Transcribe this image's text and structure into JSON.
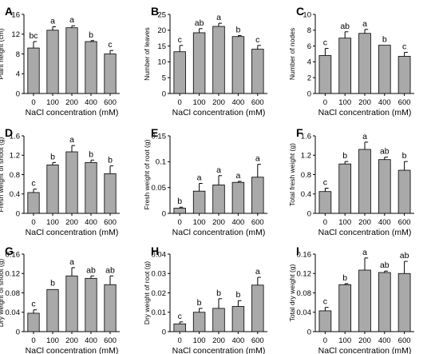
{
  "figure": {
    "panels": [
      {
        "letter": "A",
        "ylabel": "Plant height (cm)",
        "xlabel": "NaCl concentration (mM)"
      },
      {
        "letter": "B",
        "ylabel": "Number of leaves",
        "xlabel": "NaCl concentration (mM)"
      },
      {
        "letter": "C",
        "ylabel": "Number of nodes",
        "xlabel": "NaCl concentration (mM)"
      },
      {
        "letter": "D",
        "ylabel": "Fresh weight of shoot (g)",
        "xlabel": "NaCl concentration (mM)"
      },
      {
        "letter": "E",
        "ylabel": "Fresh weight of root (g)",
        "xlabel": "NaCl concentration (mM)"
      },
      {
        "letter": "F",
        "ylabel": "Total fresh weight (g)",
        "xlabel": "NaCl concentration (mM)"
      },
      {
        "letter": "G",
        "ylabel": "Dry weight of shoot (g)",
        "xlabel": "NaCl concentration (mM)"
      },
      {
        "letter": "H",
        "ylabel": "Dry weight of root (g)",
        "xlabel": "NaCl concentration (mM)"
      },
      {
        "letter": "I",
        "ylabel": "Total dry weight (g)",
        "xlabel": "NaCl concentration (mM)"
      }
    ]
  },
  "chart_data": [
    {
      "type": "bar",
      "panel": "A",
      "categories": [
        "0",
        "100",
        "200",
        "400",
        "600"
      ],
      "values": [
        9.2,
        12.8,
        13.3,
        10.5,
        8.0
      ],
      "errors": [
        1.3,
        0.7,
        0.4,
        0.2,
        0.7
      ],
      "significance": [
        "bc",
        "a",
        "a",
        "b",
        "c"
      ],
      "xlabel": "NaCl concentration (mM)",
      "ylabel": "Plant height (cm)",
      "ylim": [
        0,
        16
      ],
      "yticks": [
        "0",
        "4",
        "8",
        "12",
        "16"
      ],
      "bar_color": "#a9a9a9",
      "grid": false
    },
    {
      "type": "bar",
      "panel": "B",
      "categories": [
        "0",
        "100",
        "200",
        "400",
        "600"
      ],
      "values": [
        13.2,
        19.2,
        21.2,
        18.0,
        14.0
      ],
      "errors": [
        2.0,
        1.3,
        1.0,
        0.3,
        1.2
      ],
      "significance": [
        "c",
        "ab",
        "a",
        "b",
        "c"
      ],
      "xlabel": "NaCl concentration (mM)",
      "ylabel": "Number of leaves",
      "ylim": [
        0,
        25
      ],
      "yticks": [
        "0",
        "5",
        "10",
        "15",
        "20",
        "25"
      ],
      "bar_color": "#a9a9a9",
      "grid": false
    },
    {
      "type": "bar",
      "panel": "C",
      "categories": [
        "0",
        "100",
        "200",
        "400",
        "600"
      ],
      "values": [
        4.8,
        7.0,
        7.6,
        6.1,
        4.7
      ],
      "errors": [
        0.9,
        0.8,
        0.5,
        0.0,
        0.5
      ],
      "significance": [
        "c",
        "ab",
        "a",
        "b",
        "c"
      ],
      "xlabel": "NaCl concentration (mM)",
      "ylabel": "Number of nodes",
      "ylim": [
        0,
        10
      ],
      "yticks": [
        "0",
        "2",
        "4",
        "6",
        "8",
        "10"
      ],
      "bar_color": "#a9a9a9",
      "grid": false
    },
    {
      "type": "bar",
      "panel": "D",
      "categories": [
        "0",
        "100",
        "200",
        "400",
        "600"
      ],
      "values": [
        0.43,
        1.0,
        1.27,
        1.05,
        0.82
      ],
      "errors": [
        0.07,
        0.05,
        0.13,
        0.05,
        0.16
      ],
      "significance": [
        "c",
        "b",
        "a",
        "b",
        "b"
      ],
      "xlabel": "NaCl concentration (mM)",
      "ylabel": "Fresh weight of shoot (g)",
      "ylim": [
        0,
        1.6
      ],
      "yticks": [
        "0",
        "0.4",
        "0.8",
        "1.2",
        "1.6"
      ],
      "bar_color": "#a9a9a9",
      "grid": false
    },
    {
      "type": "bar",
      "panel": "E",
      "categories": [
        "0",
        "100",
        "200",
        "400",
        "600"
      ],
      "values": [
        0.01,
        0.043,
        0.055,
        0.06,
        0.07
      ],
      "errors": [
        0.002,
        0.015,
        0.018,
        0.002,
        0.025
      ],
      "significance": [
        "b",
        "a",
        "a",
        "a",
        "a"
      ],
      "xlabel": "NaCl concentration (mM)",
      "ylabel": "Fresh weight of root (g)",
      "ylim": [
        0,
        0.15
      ],
      "yticks": [
        "0",
        "0.05",
        "0.1",
        "0.15"
      ],
      "bar_color": "#a9a9a9",
      "grid": false
    },
    {
      "type": "bar",
      "panel": "F",
      "categories": [
        "0",
        "100",
        "200",
        "400",
        "600"
      ],
      "values": [
        0.45,
        1.02,
        1.32,
        1.11,
        0.89
      ],
      "errors": [
        0.07,
        0.05,
        0.15,
        0.05,
        0.18
      ],
      "significance": [
        "c",
        "b",
        "a",
        "ab",
        "b"
      ],
      "xlabel": "NaCl concentration (mM)",
      "ylabel": "Total fresh weight (g)",
      "ylim": [
        0,
        1.6
      ],
      "yticks": [
        "0",
        "0.4",
        "0.8",
        "1.2",
        "1.6"
      ],
      "bar_color": "#a9a9a9",
      "grid": false
    },
    {
      "type": "bar",
      "panel": "G",
      "categories": [
        "0",
        "100",
        "200",
        "400",
        "600"
      ],
      "values": [
        0.038,
        0.087,
        0.115,
        0.11,
        0.097
      ],
      "errors": [
        0.007,
        0.001,
        0.017,
        0.005,
        0.018
      ],
      "significance": [
        "c",
        "b",
        "a",
        "ab",
        "ab"
      ],
      "xlabel": "NaCl concentration (mM)",
      "ylabel": "Dry weight of shoot (g)",
      "ylim": [
        0,
        0.16
      ],
      "yticks": [
        "0",
        "0.04",
        "0.08",
        "0.12",
        "0.16"
      ],
      "bar_color": "#a9a9a9",
      "grid": false
    },
    {
      "type": "bar",
      "panel": "H",
      "categories": [
        "0",
        "100",
        "200",
        "400",
        "600"
      ],
      "values": [
        0.004,
        0.01,
        0.012,
        0.013,
        0.024
      ],
      "errors": [
        0.001,
        0.002,
        0.005,
        0.003,
        0.004
      ],
      "significance": [
        "c",
        "b",
        "b",
        "b",
        "a"
      ],
      "xlabel": "NaCl concentration (mM)",
      "ylabel": "Dry weight of root (g)",
      "ylim": [
        0,
        0.04
      ],
      "yticks": [
        "0",
        "0.01",
        "0.02",
        "0.03",
        "0.04"
      ],
      "bar_color": "#a9a9a9",
      "grid": false
    },
    {
      "type": "bar",
      "panel": "I",
      "categories": [
        "0",
        "100",
        "200",
        "400",
        "600"
      ],
      "values": [
        0.043,
        0.097,
        0.127,
        0.122,
        0.12
      ],
      "errors": [
        0.007,
        0.002,
        0.025,
        0.003,
        0.025
      ],
      "significance": [
        "c",
        "b",
        "a",
        "ab",
        "ab"
      ],
      "xlabel": "NaCl concentration (mM)",
      "ylabel": "Total dry weight (g)",
      "ylim": [
        0,
        0.16
      ],
      "yticks": [
        "0",
        "0.04",
        "0.08",
        "0.12",
        "0.16"
      ],
      "bar_color": "#a9a9a9",
      "grid": false
    }
  ]
}
